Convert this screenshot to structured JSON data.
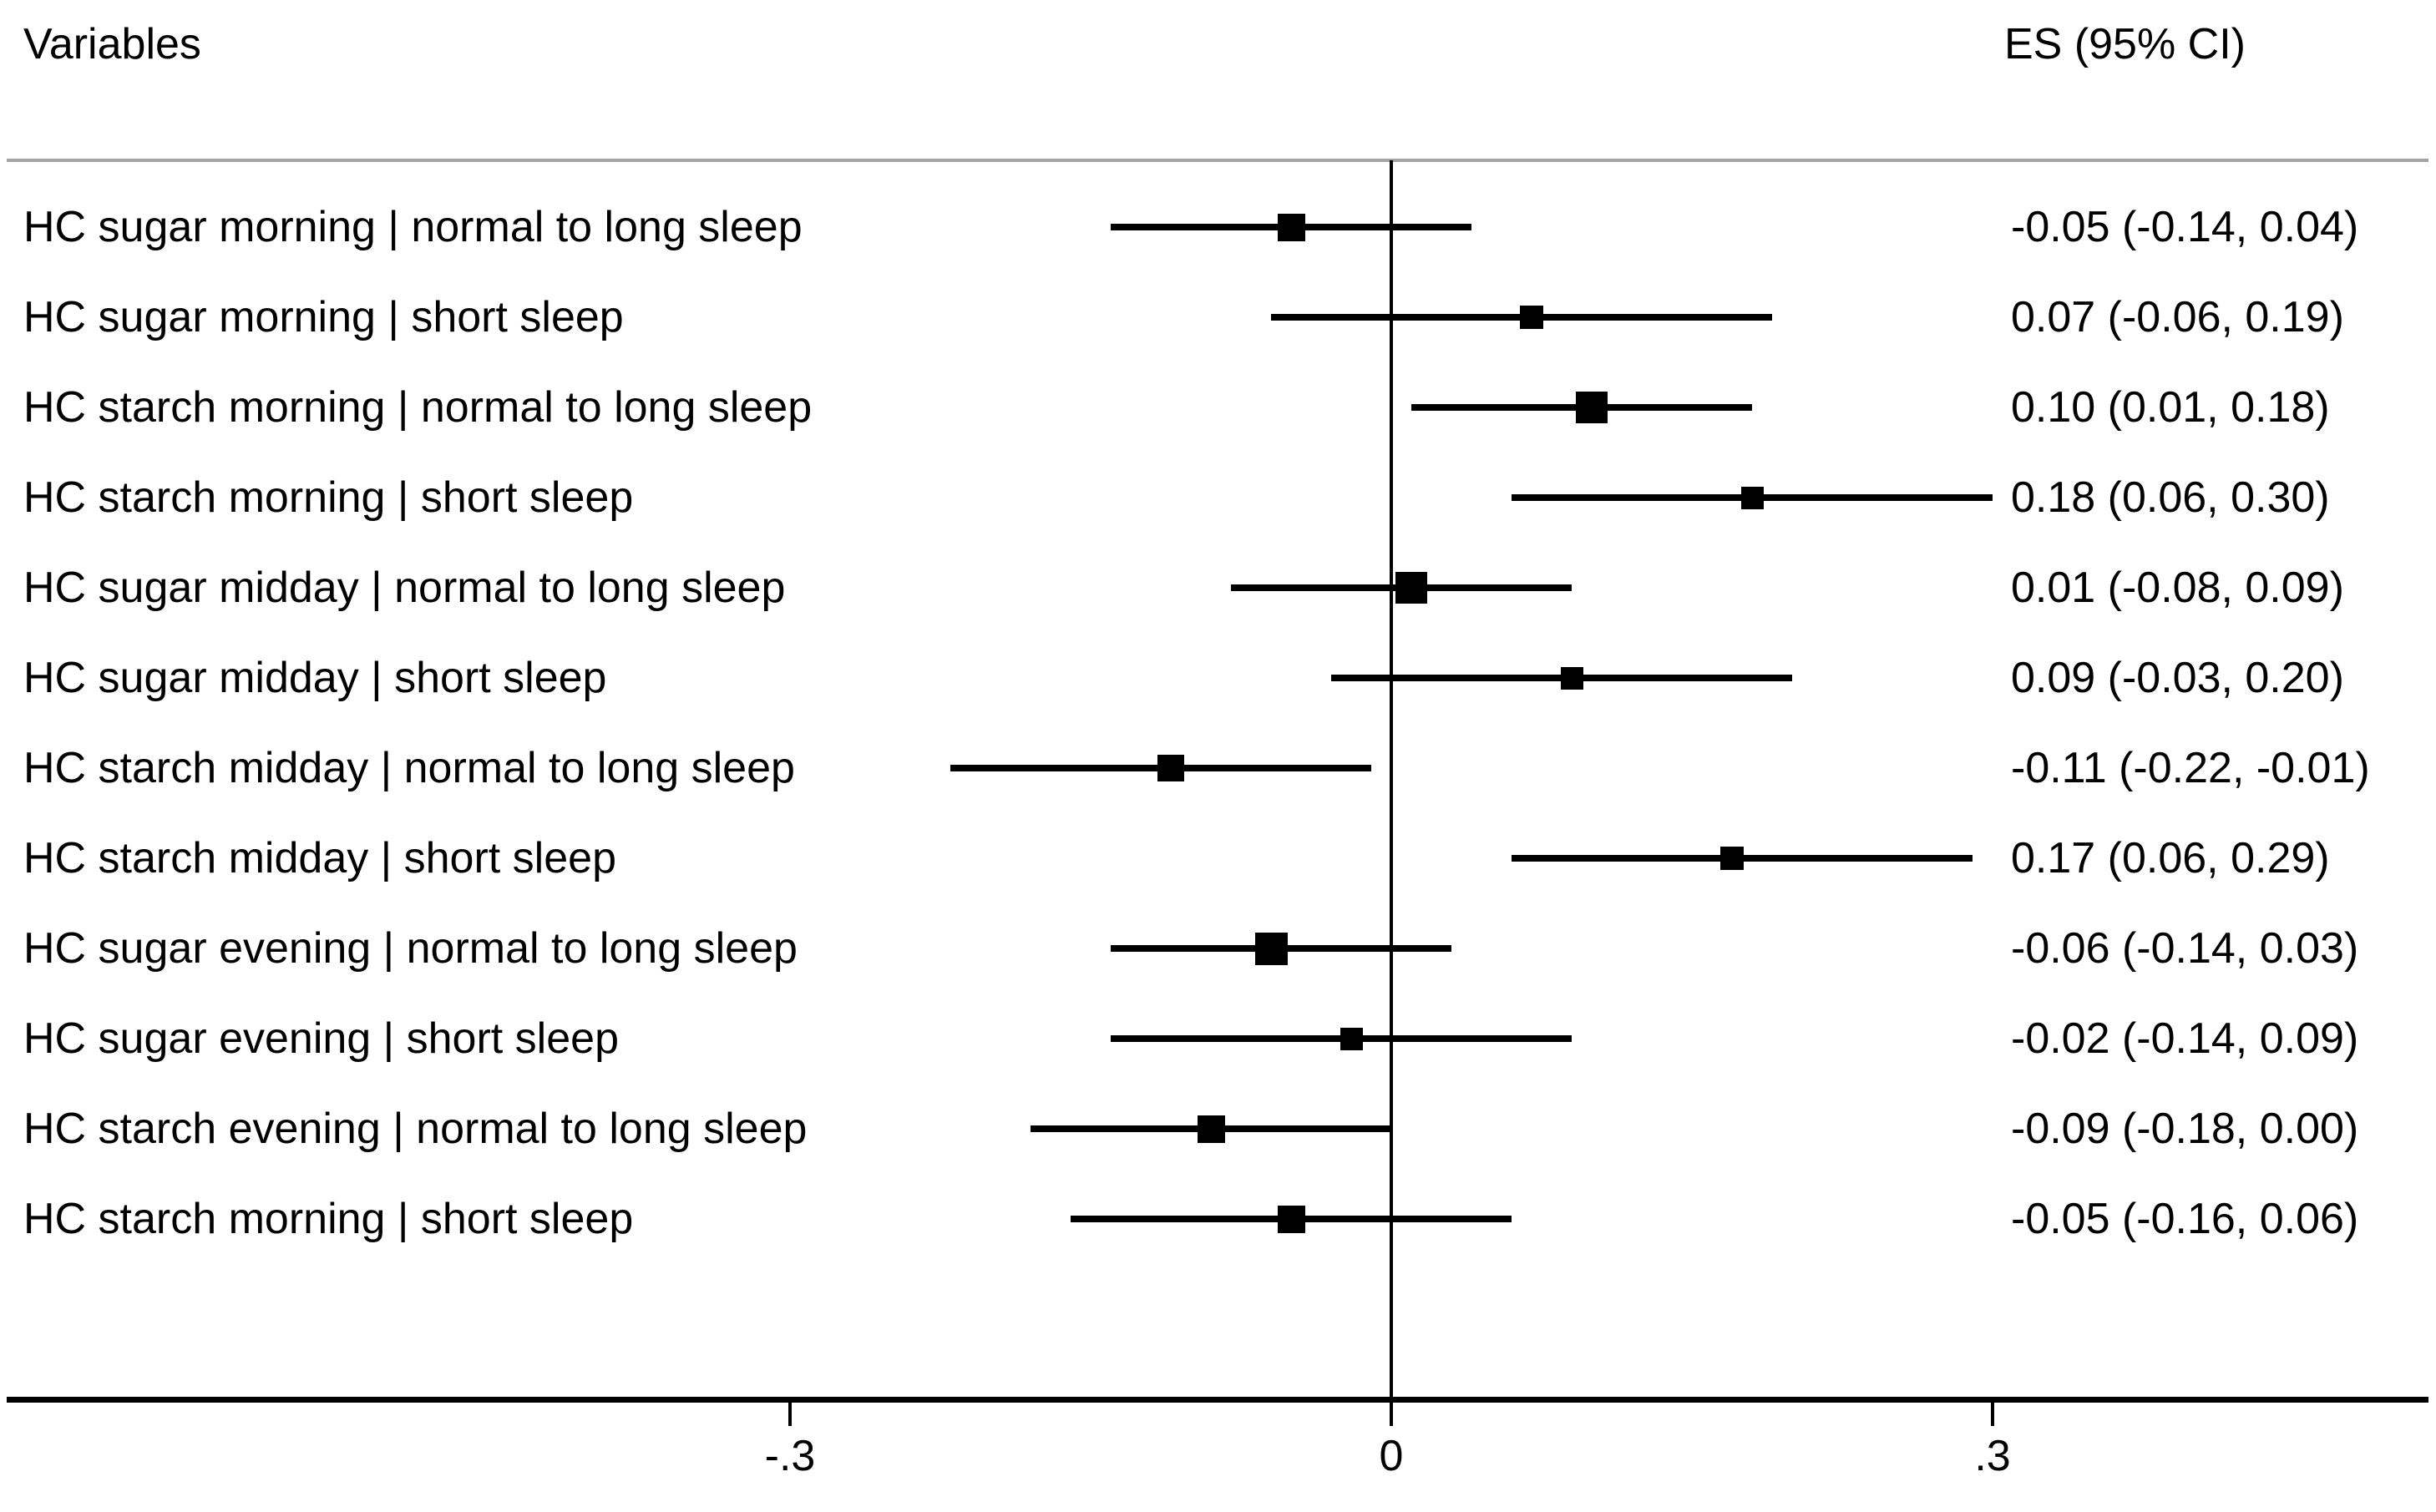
{
  "header": {
    "left_title": "Variables",
    "right_title": "ES (95% CI)"
  },
  "colors": {
    "foreground": "#000000",
    "header_rule": "#a3a3a3",
    "background": "#ffffff"
  },
  "chart_data": {
    "type": "forest",
    "title": "",
    "xlabel": "",
    "xlim": [
      -0.42,
      0.52
    ],
    "zero_reference_line": 0,
    "grid": false,
    "x_ticks": [
      {
        "label": "-.3",
        "value": -0.3
      },
      {
        "label": "0",
        "value": 0
      },
      {
        "label": ".3",
        "value": 0.3
      }
    ],
    "rows": [
      {
        "label": "HC sugar morning | normal to long sleep",
        "es": -0.05,
        "ci_low": -0.14,
        "ci_high": 0.04,
        "es_text": "-0.05 (-0.14, 0.04)",
        "marker_px": 33
      },
      {
        "label": "HC sugar morning | short sleep",
        "es": 0.07,
        "ci_low": -0.06,
        "ci_high": 0.19,
        "es_text": "0.07 (-0.06, 0.19)",
        "marker_px": 28
      },
      {
        "label": "HC starch morning | normal to long sleep",
        "es": 0.1,
        "ci_low": 0.01,
        "ci_high": 0.18,
        "es_text": "0.10 (0.01, 0.18)",
        "marker_px": 38
      },
      {
        "label": "HC starch morning | short sleep",
        "es": 0.18,
        "ci_low": 0.06,
        "ci_high": 0.3,
        "es_text": "0.18 (0.06, 0.30)",
        "marker_px": 27
      },
      {
        "label": "HC sugar midday | normal to long sleep",
        "es": 0.01,
        "ci_low": -0.08,
        "ci_high": 0.09,
        "es_text": "0.01 (-0.08, 0.09)",
        "marker_px": 38
      },
      {
        "label": "HC sugar midday | short sleep",
        "es": 0.09,
        "ci_low": -0.03,
        "ci_high": 0.2,
        "es_text": "0.09 (-0.03, 0.20)",
        "marker_px": 27
      },
      {
        "label": "HC starch midday | normal to long sleep",
        "es": -0.11,
        "ci_low": -0.22,
        "ci_high": -0.01,
        "es_text": "-0.11 (-0.22, -0.01)",
        "marker_px": 32
      },
      {
        "label": "HC starch midday | short sleep",
        "es": 0.17,
        "ci_low": 0.06,
        "ci_high": 0.29,
        "es_text": "0.17 (0.06, 0.29)",
        "marker_px": 28
      },
      {
        "label": "HC sugar evening | normal to long sleep",
        "es": -0.06,
        "ci_low": -0.14,
        "ci_high": 0.03,
        "es_text": "-0.06 (-0.14, 0.03)",
        "marker_px": 39
      },
      {
        "label": "HC sugar evening | short sleep",
        "es": -0.02,
        "ci_low": -0.14,
        "ci_high": 0.09,
        "es_text": "-0.02 (-0.14, 0.09)",
        "marker_px": 27
      },
      {
        "label": "HC starch evening | normal to long sleep",
        "es": -0.09,
        "ci_low": -0.18,
        "ci_high": 0.0,
        "es_text": "-0.09 (-0.18, 0.00)",
        "marker_px": 33
      },
      {
        "label": "HC starch morning | short sleep",
        "es": -0.05,
        "ci_low": -0.16,
        "ci_high": 0.06,
        "es_text": "-0.05 (-0.16, 0.06)",
        "marker_px": 33
      }
    ]
  }
}
